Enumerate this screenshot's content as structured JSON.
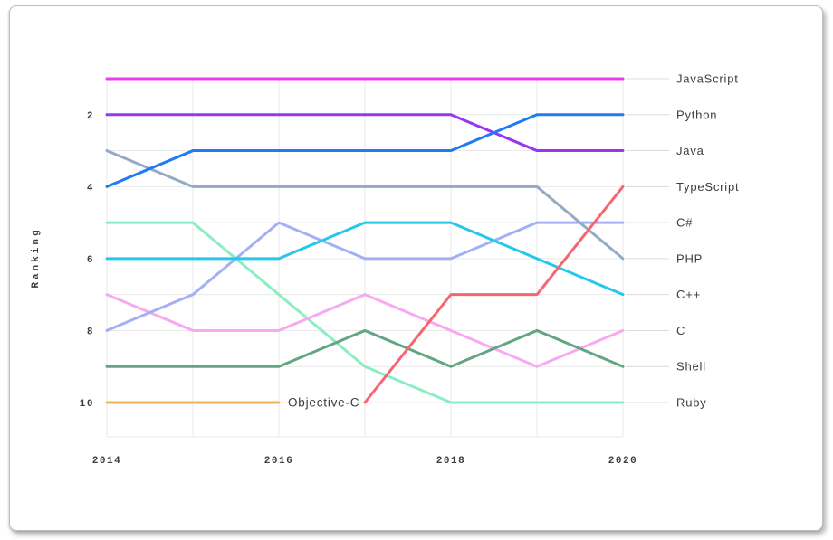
{
  "chart_data": {
    "type": "line",
    "subtype": "bump-rank-chart",
    "title": "",
    "xlabel": "",
    "ylabel": "Ranking",
    "x": [
      2014,
      2015,
      2016,
      2017,
      2018,
      2019,
      2020
    ],
    "x_tick_labels": [
      "2014",
      "2016",
      "2018",
      "2020"
    ],
    "y_tick_labels": [
      "2",
      "4",
      "6",
      "8",
      "10"
    ],
    "ylim": [
      1,
      10
    ],
    "y_axis_inverted": true,
    "grid": true,
    "legend_position": "right",
    "series": [
      {
        "name": "JavaScript",
        "color": "#ef3ceb",
        "values": [
          1,
          1,
          1,
          1,
          1,
          1,
          1
        ]
      },
      {
        "name": "Python",
        "color": "#2079f5",
        "values": [
          4,
          3,
          3,
          3,
          3,
          2,
          2
        ]
      },
      {
        "name": "Java",
        "color": "#9935f0",
        "values": [
          2,
          2,
          2,
          2,
          2,
          3,
          3
        ]
      },
      {
        "name": "TypeScript",
        "color": "#f7656f",
        "values": [
          null,
          null,
          null,
          10,
          7,
          7,
          4
        ]
      },
      {
        "name": "C#",
        "color": "#a4b0f6",
        "values": [
          8,
          7,
          5,
          6,
          6,
          5,
          5
        ]
      },
      {
        "name": "PHP",
        "color": "#95aac6",
        "values": [
          3,
          4,
          4,
          4,
          4,
          4,
          6
        ]
      },
      {
        "name": "C++",
        "color": "#25c8ea",
        "values": [
          6,
          6,
          6,
          5,
          5,
          6,
          7
        ]
      },
      {
        "name": "C",
        "color": "#f8a9f0",
        "values": [
          7,
          8,
          8,
          7,
          8,
          9,
          8
        ]
      },
      {
        "name": "Shell",
        "color": "#62a684",
        "values": [
          9,
          9,
          9,
          8,
          9,
          8,
          9
        ]
      },
      {
        "name": "Ruby",
        "color": "#8beec3",
        "values": [
          5,
          5,
          7,
          9,
          10,
          10,
          10
        ]
      },
      {
        "name": "Objective-C",
        "color": "#f5b157",
        "values": [
          10,
          10,
          10,
          null,
          null,
          null,
          null
        ]
      }
    ],
    "legend_entries": [
      "JavaScript",
      "Python",
      "Java",
      "TypeScript",
      "C#",
      "PHP",
      "C++",
      "C",
      "Shell",
      "Ruby"
    ],
    "annotations": [
      {
        "text": "Objective-C",
        "year": 2016,
        "rank": 10
      }
    ]
  },
  "colors": {
    "grid": "#e9e9e9",
    "axis_text": "#3d3d3d",
    "legend_text": "#3d3d3d",
    "card_border": "#bdbdbd",
    "background": "#ffffff"
  }
}
